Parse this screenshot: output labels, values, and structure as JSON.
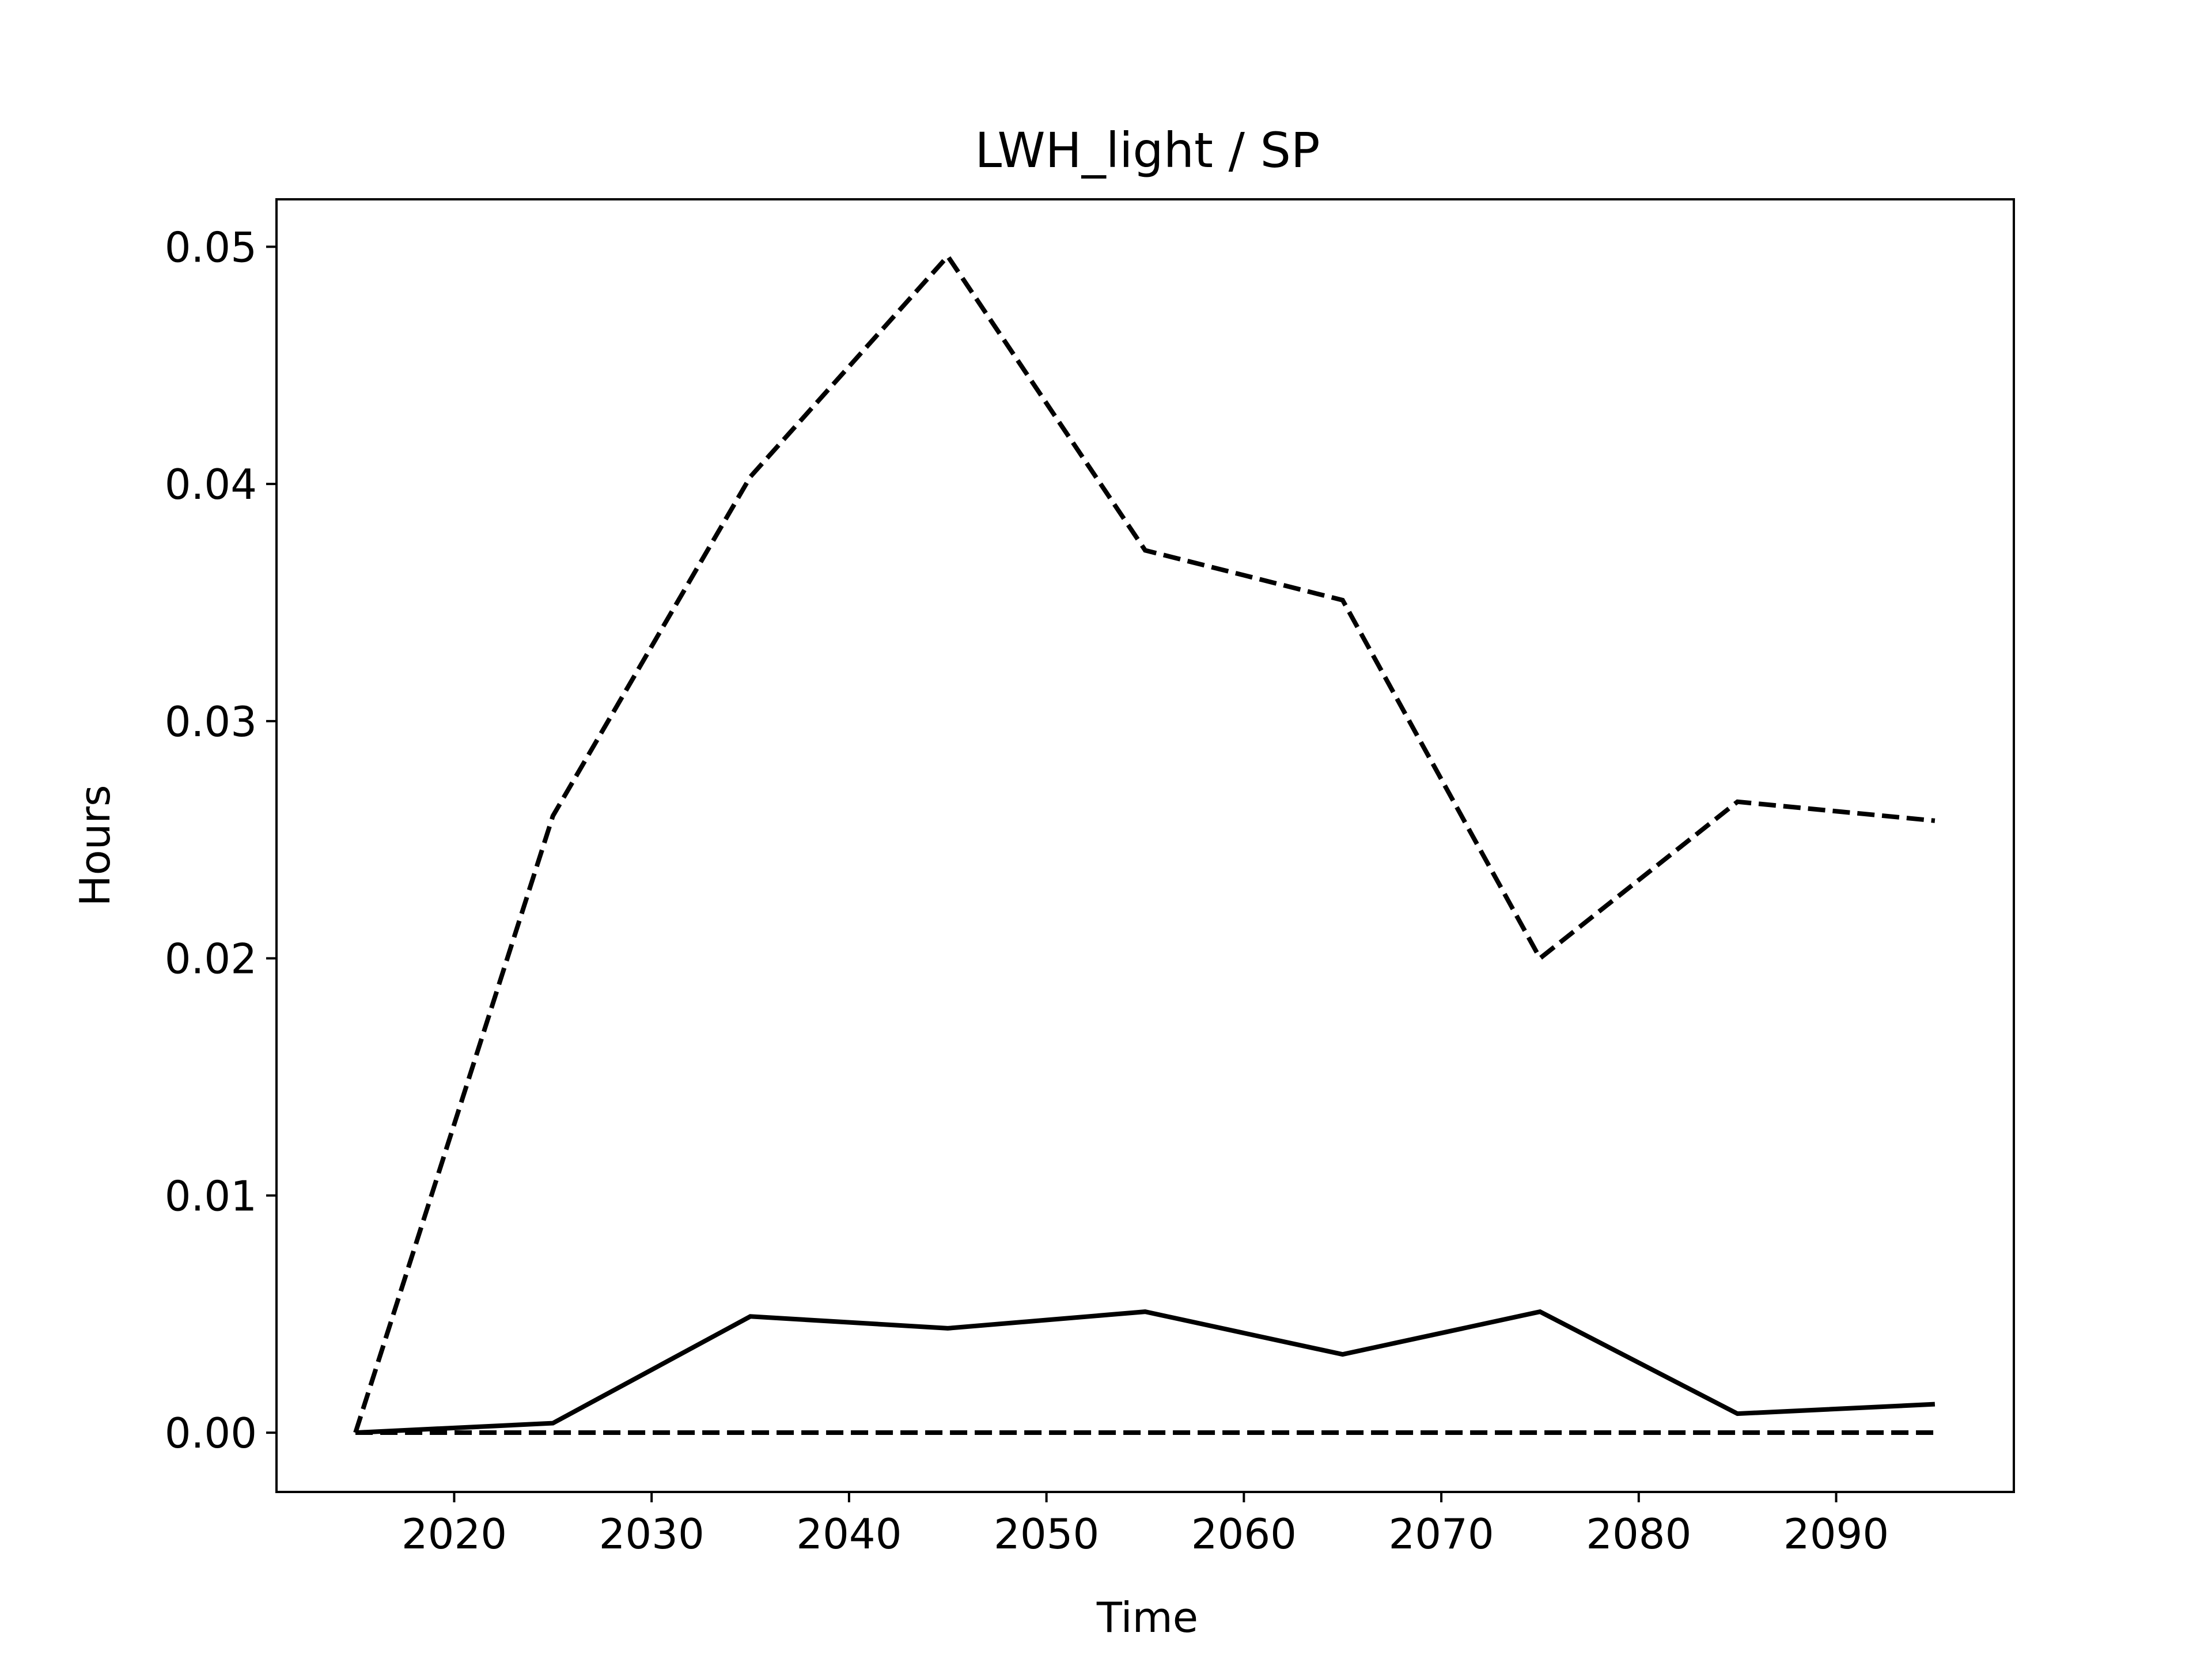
{
  "chart_data": {
    "type": "line",
    "title": "LWH_light / SP",
    "xlabel": "Time",
    "ylabel": "Hours",
    "x": [
      2015,
      2025,
      2035,
      2045,
      2055,
      2065,
      2075,
      2085,
      2095
    ],
    "xlim": [
      2011,
      2099
    ],
    "ylim": [
      -0.0025,
      0.052
    ],
    "xticks": [
      2020,
      2030,
      2040,
      2050,
      2060,
      2070,
      2080,
      2090
    ],
    "yticks": [
      0.0,
      0.01,
      0.02,
      0.03,
      0.04,
      0.05
    ],
    "ytick_labels": [
      "0.00",
      "0.01",
      "0.02",
      "0.03",
      "0.04",
      "0.05"
    ],
    "grid": false,
    "legend": "none",
    "series": [
      {
        "style": "dashed",
        "color": "#000000",
        "values": [
          0.0,
          0.026,
          0.0403,
          0.0496,
          0.0372,
          0.0351,
          0.02,
          0.0266,
          0.0258
        ]
      },
      {
        "style": "solid",
        "color": "#000000",
        "values": [
          0.0,
          0.0004,
          0.0049,
          0.0044,
          0.0051,
          0.0033,
          0.0051,
          0.0008,
          0.0012
        ]
      },
      {
        "style": "dashed",
        "color": "#000000",
        "values": [
          0.0,
          0.0,
          0.0,
          0.0,
          0.0,
          0.0,
          0.0,
          0.0,
          0.0
        ]
      }
    ]
  }
}
